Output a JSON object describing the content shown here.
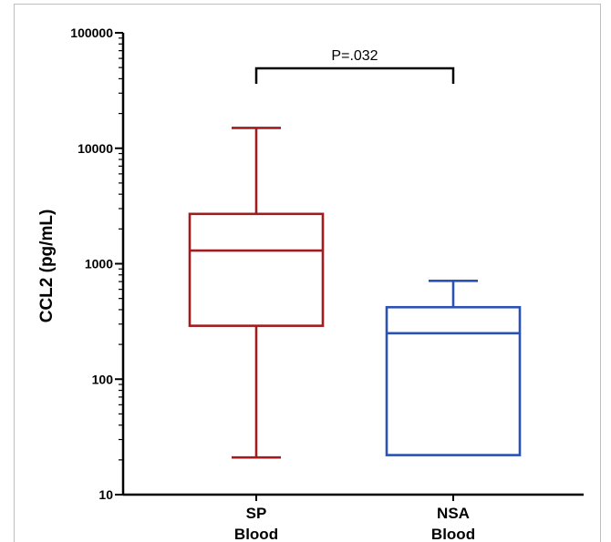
{
  "chart_data": {
    "type": "box",
    "ylabel": "CCL2 (pg/mL)",
    "yscale": "log",
    "ylim": [
      10,
      100000
    ],
    "yticks": [
      "10",
      "100",
      "1000",
      "10000",
      "100000"
    ],
    "categories": [
      {
        "line1": "SP",
        "line2": "Blood"
      },
      {
        "line1": "NSA",
        "line2": "Blood"
      }
    ],
    "boxes": [
      {
        "category": "SP Blood",
        "min": 21,
        "q1": 290,
        "median": 1300,
        "q3": 2700,
        "max": 15000,
        "color": "#a01c1f"
      },
      {
        "category": "NSA Blood",
        "min": 22,
        "q1": 22,
        "median": 250,
        "q3": 420,
        "max": 710,
        "color": "#2b51b4"
      }
    ],
    "annotation": {
      "text": "P=.032",
      "between": [
        "SP Blood",
        "NSA Blood"
      ]
    }
  }
}
